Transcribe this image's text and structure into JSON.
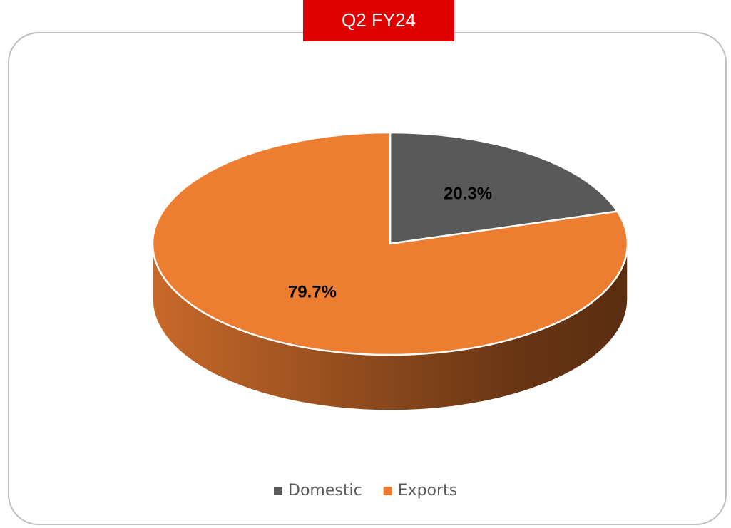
{
  "chart_data": {
    "type": "pie",
    "title": "Q2 FY24",
    "categories": [
      "Domestic",
      "Exports"
    ],
    "values": [
      20.3,
      79.7
    ],
    "value_labels": [
      "20.3%",
      "79.7%"
    ],
    "colors": [
      "#595959",
      "#ed7d31"
    ],
    "legend": "bottom"
  }
}
